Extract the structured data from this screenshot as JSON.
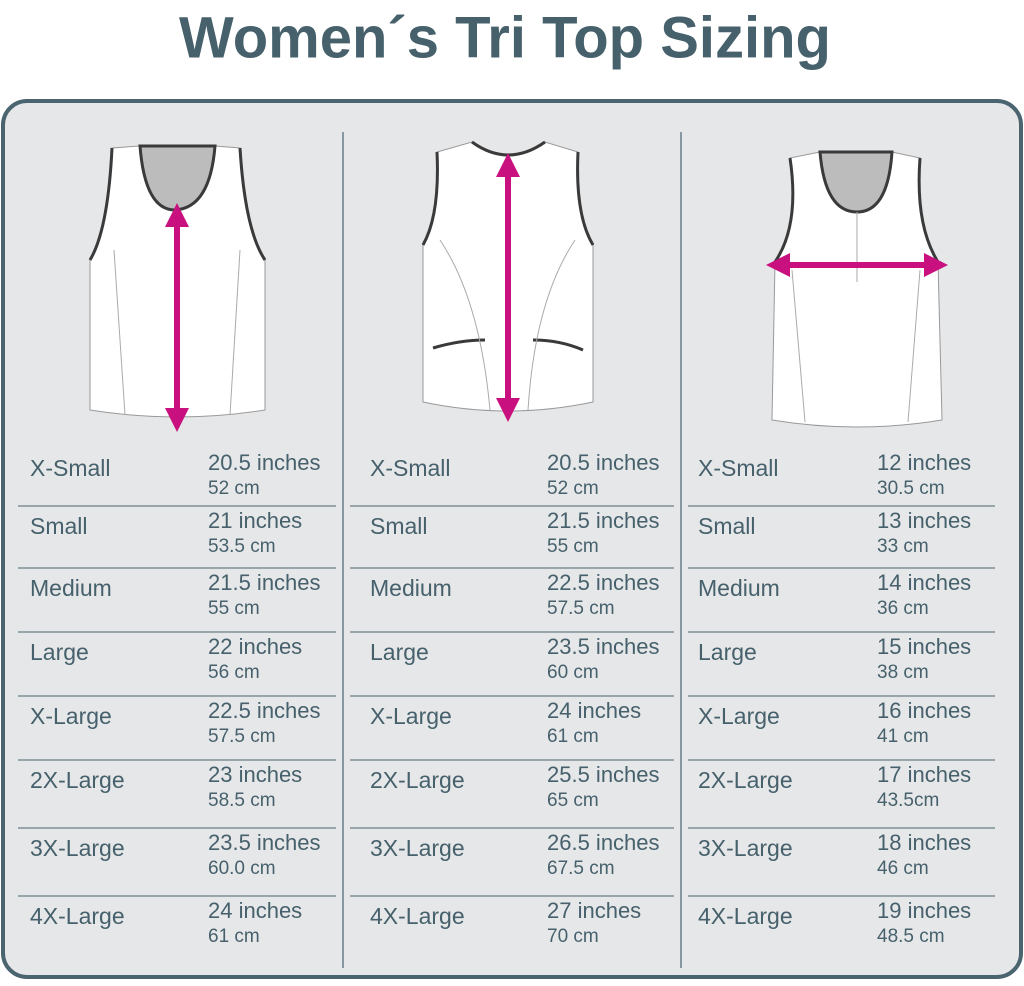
{
  "title": "Women´s Tri Top Sizing",
  "panels": [
    {
      "rows": [
        {
          "size": "X-Small",
          "inches": "20.5 inches",
          "cm": "52 cm"
        },
        {
          "size": "Small",
          "inches": "21 inches",
          "cm": "53.5 cm"
        },
        {
          "size": "Medium",
          "inches": "21.5 inches",
          "cm": "55 cm"
        },
        {
          "size": "Large",
          "inches": "22 inches",
          "cm": "56 cm"
        },
        {
          "size": "X-Large",
          "inches": "22.5 inches",
          "cm": "57.5 cm"
        },
        {
          "size": "2X-Large",
          "inches": "23 inches",
          "cm": "58.5 cm"
        },
        {
          "size": "3X-Large",
          "inches": "23.5 inches",
          "cm": "60.0 cm"
        },
        {
          "size": "4X-Large",
          "inches": "24 inches",
          "cm": "61 cm"
        }
      ]
    },
    {
      "rows": [
        {
          "size": "X-Small",
          "inches": "20.5 inches",
          "cm": "52 cm"
        },
        {
          "size": "Small",
          "inches": "21.5 inches",
          "cm": "55 cm"
        },
        {
          "size": "Medium",
          "inches": "22.5 inches",
          "cm": "57.5 cm"
        },
        {
          "size": "Large",
          "inches": "23.5 inches",
          "cm": "60 cm"
        },
        {
          "size": "X-Large",
          "inches": "24 inches",
          "cm": "61 cm"
        },
        {
          "size": "2X-Large",
          "inches": "25.5 inches",
          "cm": "65 cm"
        },
        {
          "size": "3X-Large",
          "inches": "26.5 inches",
          "cm": "67.5 cm"
        },
        {
          "size": "4X-Large",
          "inches": "27 inches",
          "cm": "70 cm"
        }
      ]
    },
    {
      "rows": [
        {
          "size": "X-Small",
          "inches": "12 inches",
          "cm": "30.5 cm"
        },
        {
          "size": "Small",
          "inches": "13 inches",
          "cm": "33 cm"
        },
        {
          "size": "Medium",
          "inches": "14 inches",
          "cm": "36 cm"
        },
        {
          "size": "Large",
          "inches": "15 inches",
          "cm": "38 cm"
        },
        {
          "size": "X-Large",
          "inches": "16 inches",
          "cm": "41 cm"
        },
        {
          "size": "2X-Large",
          "inches": "17 inches",
          "cm": "43.5cm"
        },
        {
          "size": "3X-Large",
          "inches": "18 inches",
          "cm": "46 cm"
        },
        {
          "size": "4X-Large",
          "inches": "19 inches",
          "cm": "48.5 cm"
        }
      ]
    }
  ]
}
